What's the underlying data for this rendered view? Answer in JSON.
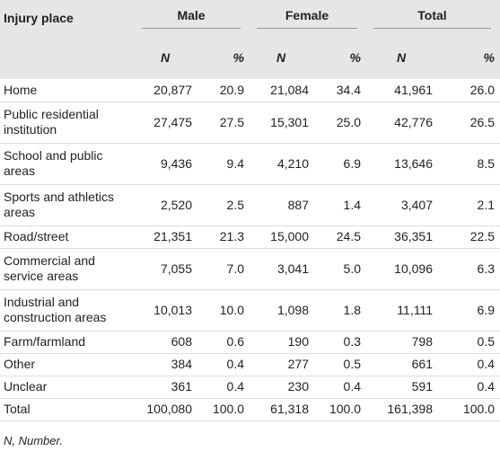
{
  "table": {
    "header": [
      "Injury place",
      "Male",
      "Female",
      "Total"
    ],
    "subheader": [
      "N",
      "%",
      "N",
      "%",
      "N",
      "%"
    ],
    "rows": [
      [
        "Home",
        "20,877",
        "20.9",
        "21,084",
        "34.4",
        "41,961",
        "26.0"
      ],
      [
        "Public residential institution",
        "27,475",
        "27.5",
        "15,301",
        "25.0",
        "42,776",
        "26.5"
      ],
      [
        "School and public areas",
        "9,436",
        "9.4",
        "4,210",
        "6.9",
        "13,646",
        "8.5"
      ],
      [
        "Sports and athletics areas",
        "2,520",
        "2.5",
        "887",
        "1.4",
        "3,407",
        "2.1"
      ],
      [
        "Road/street",
        "21,351",
        "21.3",
        "15,000",
        "24.5",
        "36,351",
        "22.5"
      ],
      [
        "Commercial and service areas",
        "7,055",
        "7.0",
        "3,041",
        "5.0",
        "10,096",
        "6.3"
      ],
      [
        "Industrial and construction areas",
        "10,013",
        "10.0",
        "1,098",
        "1.8",
        "11,111",
        "6.9"
      ],
      [
        "Farm/farmland",
        "608",
        "0.6",
        "190",
        "0.3",
        "798",
        "0.5"
      ],
      [
        "Other",
        "384",
        "0.4",
        "277",
        "0.5",
        "661",
        "0.4"
      ],
      [
        "Unclear",
        "361",
        "0.4",
        "230",
        "0.4",
        "591",
        "0.4"
      ],
      [
        "Total",
        "100,080",
        "100.0",
        "61,318",
        "100.0",
        "161,398",
        "100.0"
      ]
    ],
    "footnote": "N, Number."
  }
}
